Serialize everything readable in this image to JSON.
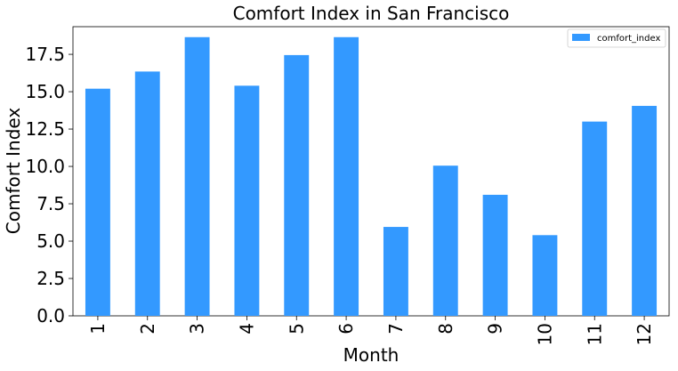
{
  "chart_data": {
    "type": "bar",
    "title": "Comfort Index in San Francisco",
    "xlabel": "Month",
    "ylabel": "Comfort Index",
    "categories": [
      "1",
      "2",
      "3",
      "4",
      "5",
      "6",
      "7",
      "8",
      "9",
      "10",
      "11",
      "12"
    ],
    "series": [
      {
        "name": "comfort_index",
        "color": "#3399ff",
        "values": [
          15.2,
          16.35,
          18.65,
          15.4,
          17.45,
          18.65,
          5.95,
          10.05,
          8.1,
          5.4,
          13.0,
          14.05
        ]
      }
    ],
    "ylim": [
      0,
      19.35
    ],
    "yticks": [
      0.0,
      2.5,
      5.0,
      7.5,
      10.0,
      12.5,
      15.0,
      17.5
    ],
    "ytick_labels": [
      "0.0",
      "2.5",
      "5.0",
      "7.5",
      "10.0",
      "12.5",
      "15.0",
      "17.5"
    ],
    "grid": false,
    "legend_position": "top-right"
  }
}
